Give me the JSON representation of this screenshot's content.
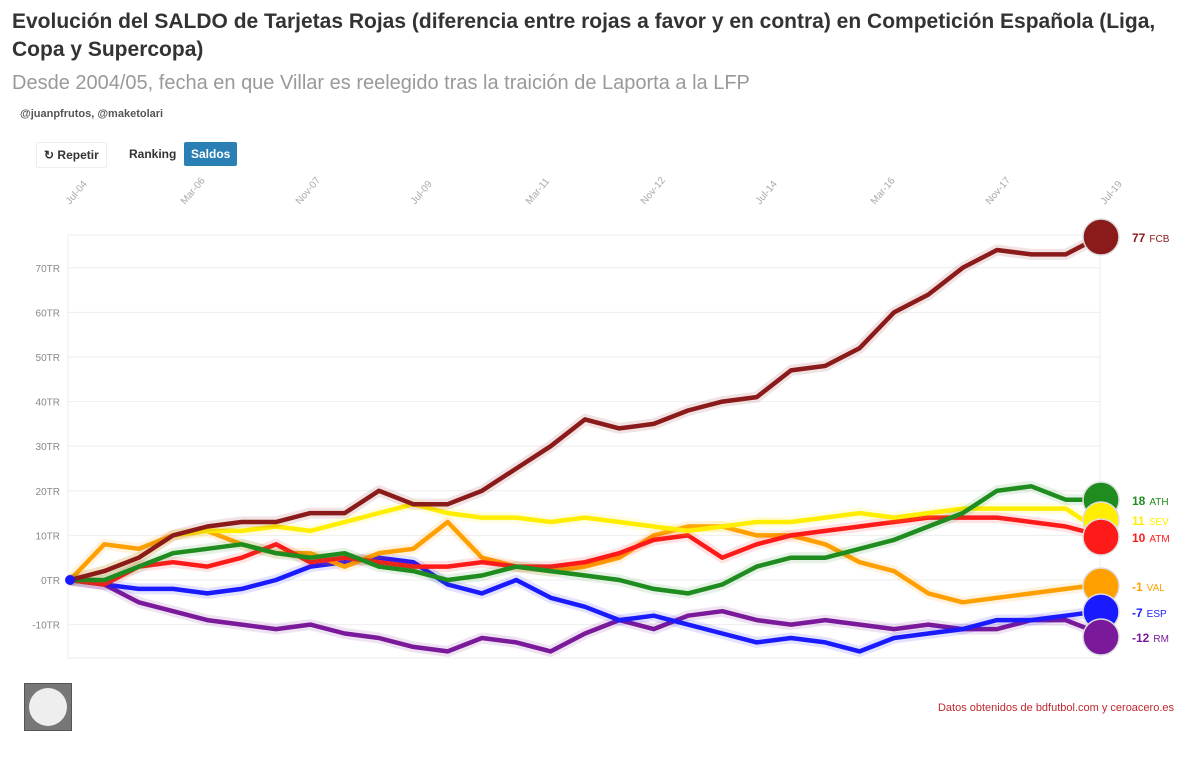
{
  "header": {
    "title": "Evolución del SALDO de Tarjetas Rojas (diferencia entre rojas a favor y en contra) en Competición Española (Liga, Copa y Supercopa)",
    "subtitle": "Desde 2004/05, fecha en que Villar es reelegido tras la traición de Laporta a la LFP",
    "credits": "@juanpfrutos, @maketolari"
  },
  "controls": {
    "repeat_icon": "replay-icon",
    "repeat": "Repetir",
    "ranking": "Ranking",
    "saldos": "Saldos"
  },
  "footer": {
    "source": "Datos obtenidos de bdfutbol.com y ceroacero.es"
  },
  "chart_data": {
    "type": "line",
    "title": "Evolución del SALDO de Tarjetas Rojas",
    "x_start": 2004.5,
    "x_step": 0.5,
    "x_ticks": [
      "Jul-04",
      "Mar-06",
      "Nov-07",
      "Jul-09",
      "Mar-11",
      "Nov-12",
      "Jul-14",
      "Mar-16",
      "Nov-17",
      "Jul-19"
    ],
    "y_ticks": [
      {
        "v": -10,
        "label": "-10TR"
      },
      {
        "v": 0,
        "label": "0TR"
      },
      {
        "v": 10,
        "label": "10TR"
      },
      {
        "v": 20,
        "label": "20TR"
      },
      {
        "v": 30,
        "label": "30TR"
      },
      {
        "v": 40,
        "label": "40TR"
      },
      {
        "v": 50,
        "label": "50TR"
      },
      {
        "v": 60,
        "label": "60TR"
      },
      {
        "v": 70,
        "label": "70TR"
      }
    ],
    "ylim": [
      -17,
      79
    ],
    "series": [
      {
        "name": "FCB",
        "final": "77",
        "color": "#8b1a1a",
        "values": [
          0,
          2,
          5,
          10,
          12,
          13,
          13,
          15,
          15,
          20,
          17,
          17,
          20,
          25,
          30,
          36,
          34,
          35,
          38,
          40,
          41,
          47,
          48,
          52,
          60,
          64,
          70,
          74,
          73,
          73,
          77
        ]
      },
      {
        "name": "ATH",
        "final": "18",
        "color": "#1e8c1e",
        "values": [
          0,
          0,
          3,
          6,
          7,
          8,
          6,
          5,
          6,
          3,
          2,
          0,
          1,
          3,
          2,
          1,
          0,
          -2,
          -3,
          -1,
          3,
          5,
          5,
          7,
          9,
          12,
          15,
          20,
          21,
          18,
          18
        ]
      },
      {
        "name": "SEV",
        "final": "11",
        "color": "#ffee00",
        "values": [
          0,
          2,
          5,
          10,
          11,
          11,
          12,
          11,
          13,
          15,
          17,
          15,
          14,
          14,
          13,
          14,
          13,
          12,
          11,
          12,
          13,
          13,
          14,
          15,
          14,
          15,
          16,
          16,
          16,
          16,
          11
        ]
      },
      {
        "name": "ATM",
        "final": "10",
        "color": "#ff1a1a",
        "values": [
          0,
          -1,
          3,
          4,
          3,
          5,
          8,
          4,
          5,
          4,
          3,
          3,
          4,
          3,
          3,
          4,
          6,
          9,
          10,
          5,
          8,
          10,
          11,
          12,
          13,
          14,
          14,
          14,
          13,
          12,
          10
        ]
      },
      {
        "name": "VAL",
        "final": "-1",
        "color": "#ffa000",
        "values": [
          0,
          8,
          7,
          10,
          11,
          8,
          6,
          6,
          3,
          6,
          7,
          13,
          5,
          3,
          2,
          3,
          5,
          10,
          12,
          12,
          10,
          10,
          8,
          4,
          2,
          -3,
          -5,
          -4,
          -3,
          -2,
          -1
        ]
      },
      {
        "name": "ESP",
        "final": "-7",
        "color": "#1a1aff",
        "values": [
          0,
          -1,
          -2,
          -2,
          -3,
          -2,
          0,
          3,
          4,
          5,
          4,
          -1,
          -3,
          0,
          -4,
          -6,
          -9,
          -8,
          -10,
          -12,
          -14,
          -13,
          -14,
          -16,
          -13,
          -12,
          -11,
          -9,
          -9,
          -8,
          -7
        ]
      },
      {
        "name": "RM",
        "final": "-12",
        "color": "#7a1a9a",
        "values": [
          0,
          -1,
          -5,
          -7,
          -9,
          -10,
          -11,
          -10,
          -12,
          -13,
          -15,
          -16,
          -13,
          -14,
          -16,
          -12,
          -9,
          -11,
          -8,
          -7,
          -9,
          -10,
          -9,
          -10,
          -11,
          -10,
          -11,
          -11,
          -9,
          -9,
          -12
        ]
      }
    ]
  }
}
